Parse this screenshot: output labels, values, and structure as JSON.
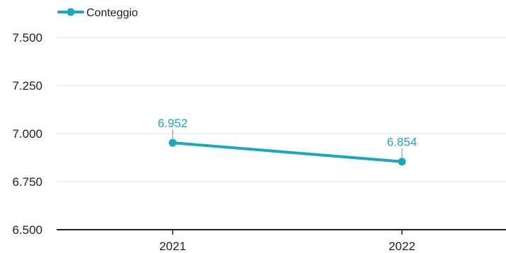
{
  "chart_data": {
    "type": "line",
    "categories": [
      "2021",
      "2022"
    ],
    "series": [
      {
        "name": "Conteggio",
        "values": [
          6952,
          6854
        ],
        "value_labels": [
          "6.952",
          "6.854"
        ],
        "color": "#1aa7bf"
      }
    ],
    "y_ticks": [
      7500,
      7250,
      7000,
      6750,
      6500
    ],
    "y_tick_labels": [
      "7.500",
      "7.250",
      "7.000",
      "6.750",
      "6.500"
    ],
    "ylim": [
      6500,
      7500
    ],
    "grid": true,
    "legend_position": "top-left",
    "gridline_color": "#dddddd",
    "axis_color": "#222222"
  }
}
